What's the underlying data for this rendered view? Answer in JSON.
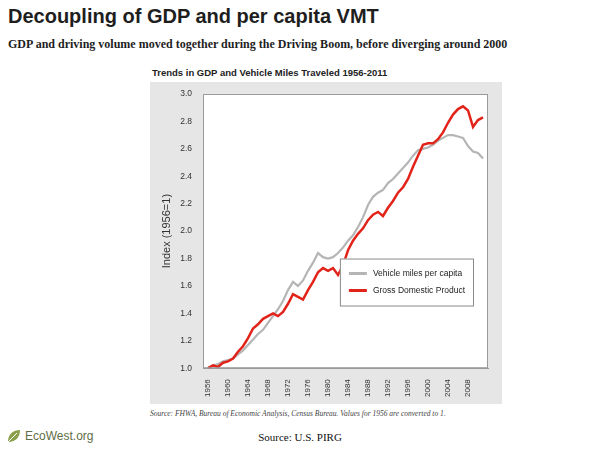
{
  "header": {
    "title": "Decoupling of GDP and per capita VMT",
    "subtitle": "GDP and driving volume moved together during the Driving Boom, before diverging around 2000"
  },
  "chart_data": {
    "type": "line",
    "title": "Trends in GDP and Vehicle Miles Traveled 1956-2011",
    "y_label": "Index (1956=1)",
    "x": [
      1956,
      1957,
      1958,
      1959,
      1960,
      1961,
      1962,
      1963,
      1964,
      1965,
      1966,
      1967,
      1968,
      1969,
      1970,
      1971,
      1972,
      1973,
      1974,
      1975,
      1976,
      1977,
      1978,
      1979,
      1980,
      1981,
      1982,
      1983,
      1984,
      1985,
      1986,
      1987,
      1988,
      1989,
      1990,
      1991,
      1992,
      1993,
      1994,
      1995,
      1996,
      1997,
      1998,
      1999,
      2000,
      2001,
      2002,
      2003,
      2004,
      2005,
      2006,
      2007,
      2008,
      2009,
      2010,
      2011
    ],
    "series": [
      {
        "name": "Vehicle miles per capita",
        "color": "#b5b5b5",
        "values": [
          1.0,
          1.02,
          1.03,
          1.05,
          1.06,
          1.07,
          1.1,
          1.13,
          1.17,
          1.21,
          1.25,
          1.28,
          1.33,
          1.38,
          1.43,
          1.49,
          1.57,
          1.63,
          1.6,
          1.64,
          1.71,
          1.77,
          1.84,
          1.81,
          1.8,
          1.81,
          1.84,
          1.88,
          1.93,
          1.97,
          2.03,
          2.1,
          2.19,
          2.25,
          2.28,
          2.3,
          2.35,
          2.38,
          2.42,
          2.46,
          2.5,
          2.55,
          2.59,
          2.6,
          2.61,
          2.63,
          2.66,
          2.68,
          2.7,
          2.7,
          2.69,
          2.68,
          2.62,
          2.58,
          2.57,
          2.53
        ]
      },
      {
        "name": "Gross Domestic Product",
        "color": "#e2231a",
        "values": [
          1.0,
          1.02,
          1.01,
          1.04,
          1.05,
          1.07,
          1.12,
          1.16,
          1.22,
          1.29,
          1.32,
          1.36,
          1.38,
          1.4,
          1.38,
          1.41,
          1.47,
          1.54,
          1.52,
          1.5,
          1.57,
          1.63,
          1.7,
          1.73,
          1.71,
          1.73,
          1.68,
          1.75,
          1.86,
          1.93,
          1.98,
          2.02,
          2.08,
          2.12,
          2.14,
          2.11,
          2.17,
          2.22,
          2.28,
          2.32,
          2.38,
          2.47,
          2.55,
          2.63,
          2.64,
          2.64,
          2.67,
          2.72,
          2.79,
          2.85,
          2.89,
          2.91,
          2.88,
          2.76,
          2.81,
          2.83
        ]
      }
    ],
    "xlim": [
      1955,
      2012
    ],
    "xticks": [
      1956,
      1960,
      1964,
      1968,
      1972,
      1976,
      1980,
      1984,
      1988,
      1992,
      1996,
      2000,
      2004,
      2008
    ],
    "ylim": [
      1.0,
      3.0
    ],
    "yticks": [
      {
        "value": 1.0,
        "label": "1.0"
      },
      1.2,
      1.4,
      1.6,
      1.8,
      {
        "value": 2.0,
        "label": "2.0"
      },
      2.2,
      2.4,
      2.6,
      2.8,
      {
        "value": 3.0,
        "label": "3.0"
      }
    ],
    "grid": false,
    "legend": "right"
  },
  "footer": {
    "note": "Source: FHWA, Bureau of Economic Analysis, Census Bureau. Values for 1956 are converted to 1.",
    "source": "Source: U.S. PIRG",
    "logo": "EcoWest.org"
  }
}
